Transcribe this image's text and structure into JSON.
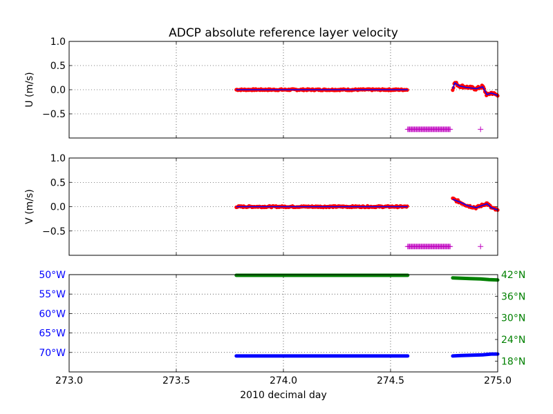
{
  "chart_data": {
    "type": "scatter",
    "title": "ADCP absolute reference layer velocity",
    "xlabel": "2010 decimal day",
    "xlim": [
      273.0,
      275.0
    ],
    "x_ticks": [
      "273.0",
      "273.5",
      "274.0",
      "274.5",
      "275.0"
    ],
    "x_tick_values": [
      273.0,
      273.5,
      274.0,
      274.5,
      275.0
    ],
    "grid": true,
    "colors": {
      "measured": "#ff0000",
      "smoothed": "#0000ff",
      "flag": "#bf00bf",
      "lon": "#0000ff",
      "lat": "#008000"
    },
    "panels": [
      {
        "id": "u",
        "ylabel": "U (m/s)",
        "ylim": [
          -1.0,
          1.0
        ],
        "y_ticks": [
          "1.0",
          "0.5",
          "0.0",
          "−0.5"
        ],
        "y_tick_values": [
          1.0,
          0.5,
          0.0,
          -0.5
        ],
        "series": [
          {
            "marker": "dot",
            "role": "measured",
            "segments": [
              {
                "x_start": 273.78,
                "x_end": 274.58,
                "y": 0.0,
                "noise": 0.015
              },
              {
                "x_start": 274.79,
                "x_end": 275.0,
                "trend_x": [
                  274.79,
                  274.8,
                  274.82,
                  274.85,
                  274.9,
                  274.93,
                  274.95,
                  274.97,
                  275.0
                ],
                "trend_y": [
                  0.02,
                  0.15,
                  0.08,
                  0.06,
                  0.02,
                  0.07,
                  -0.12,
                  -0.06,
                  -0.12
                ],
                "noise": 0.03
              }
            ]
          },
          {
            "marker": "line",
            "role": "smoothed",
            "segments": [
              {
                "x": [
                  273.78,
                  274.58
                ],
                "y": [
                  0.0,
                  0.0
                ]
              },
              {
                "x": [
                  274.79,
                  274.8,
                  274.82,
                  274.85,
                  274.9,
                  274.93,
                  274.95,
                  274.97,
                  275.0
                ],
                "y": [
                  0.02,
                  0.14,
                  0.08,
                  0.05,
                  0.02,
                  0.06,
                  -0.1,
                  -0.07,
                  -0.12
                ]
              }
            ]
          },
          {
            "marker": "plus",
            "role": "flag",
            "segments": [
              {
                "x_start": 274.58,
                "x_end": 274.78,
                "y": -0.82
              },
              {
                "x": [
                  274.92
                ],
                "y": [
                  -0.82
                ]
              }
            ]
          }
        ]
      },
      {
        "id": "v",
        "ylabel": "V (m/s)",
        "ylim": [
          -1.0,
          1.0
        ],
        "y_ticks": [
          "1.0",
          "0.5",
          "0.0",
          "−0.5"
        ],
        "y_tick_values": [
          1.0,
          0.5,
          0.0,
          -0.5
        ],
        "series": [
          {
            "marker": "dot",
            "role": "measured",
            "segments": [
              {
                "x_start": 273.78,
                "x_end": 274.58,
                "y": 0.0,
                "noise": 0.015
              },
              {
                "x_start": 274.79,
                "x_end": 275.0,
                "trend_x": [
                  274.79,
                  274.82,
                  274.86,
                  274.9,
                  274.95,
                  274.97,
                  275.0
                ],
                "trend_y": [
                  0.16,
                  0.1,
                  0.02,
                  -0.02,
                  0.07,
                  -0.02,
                  -0.08
                ],
                "noise": 0.025
              }
            ]
          },
          {
            "marker": "line",
            "role": "smoothed",
            "segments": [
              {
                "x": [
                  273.78,
                  274.58
                ],
                "y": [
                  0.0,
                  0.0
                ]
              },
              {
                "x": [
                  274.79,
                  274.82,
                  274.86,
                  274.9,
                  274.95,
                  274.97,
                  275.0
                ],
                "y": [
                  0.15,
                  0.1,
                  0.02,
                  -0.02,
                  0.06,
                  -0.02,
                  -0.07
                ]
              }
            ]
          },
          {
            "marker": "plus",
            "role": "flag",
            "segments": [
              {
                "x_start": 274.58,
                "x_end": 274.78,
                "y": -0.82
              },
              {
                "x": [
                  274.92
                ],
                "y": [
                  -0.82
                ]
              }
            ]
          }
        ]
      },
      {
        "id": "pos",
        "ylabel": "",
        "lon_ylim": [
          -75.0,
          -50.0
        ],
        "lon_ticks": [
          "50°W",
          "55°W",
          "60°W",
          "65°W",
          "70°W"
        ],
        "lon_tick_values": [
          -50,
          -55,
          -60,
          -65,
          -70
        ],
        "lat_ylim": [
          15.0,
          42.0
        ],
        "lat_ticks": [
          "42°N",
          "36°N",
          "30°N",
          "24°N",
          "18°N"
        ],
        "lat_tick_values": [
          42,
          36,
          30,
          24,
          18
        ],
        "series": [
          {
            "axis": "lat",
            "role": "lat",
            "segments": [
              {
                "x": [
                  273.78,
                  274.58
                ],
                "y": [
                  41.8,
                  41.8
                ]
              },
              {
                "x": [
                  274.79,
                  274.83,
                  274.87,
                  274.92,
                  274.96,
                  275.0
                ],
                "y": [
                  41.1,
                  41.0,
                  40.9,
                  40.8,
                  40.6,
                  40.5
                ]
              }
            ]
          },
          {
            "axis": "lon",
            "role": "lon",
            "segments": [
              {
                "x": [
                  273.78,
                  274.58
                ],
                "y": [
                  -70.9,
                  -70.9
                ]
              },
              {
                "x": [
                  274.79,
                  274.83,
                  274.88,
                  274.93,
                  274.97,
                  275.0
                ],
                "y": [
                  -70.9,
                  -70.8,
                  -70.7,
                  -70.6,
                  -70.4,
                  -70.4
                ]
              }
            ]
          }
        ]
      }
    ]
  }
}
